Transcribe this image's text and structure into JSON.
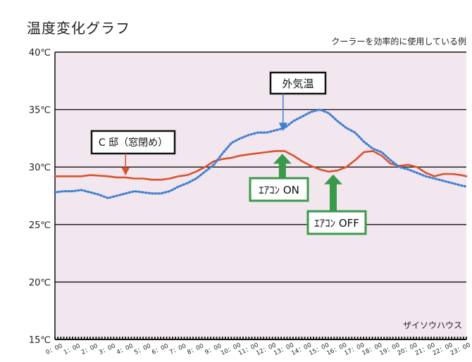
{
  "chart_data": {
    "type": "line",
    "title": "温度変化グラフ",
    "subtitle": "クーラーを効率的に使用している例",
    "watermark": "ザイソウハウス",
    "ylim": [
      15,
      40
    ],
    "y_ticks": [
      15,
      20,
      25,
      30,
      35,
      40
    ],
    "y_unit": "℃",
    "x_ticks": [
      "0：00",
      "1：00",
      "2：00",
      "3：00",
      "4：00",
      "5：00",
      "6：00",
      "7：00",
      "8：00",
      "9：00",
      "10：00",
      "11：00",
      "12：00",
      "13：00",
      "14：00",
      "15：00",
      "16：00",
      "17：00",
      "18：00",
      "19：00",
      "20：00",
      "21：00",
      "22：00",
      "23：00"
    ],
    "xlim": [
      0,
      23.3
    ],
    "grid": true,
    "colors": {
      "background": "#f2e6ef",
      "house_line": "#d9532b",
      "outside_line": "#3f7fd0",
      "gridline": "#111111",
      "arrow": "#3a9a4a"
    },
    "series": [
      {
        "name": "C 邸（窓閉め）",
        "style": "solid",
        "x": [
          0,
          0.5,
          1,
          1.5,
          2,
          2.5,
          3,
          3.5,
          4,
          4.5,
          5,
          5.5,
          6,
          6.5,
          7,
          7.5,
          8,
          8.5,
          9,
          9.5,
          10,
          10.5,
          11,
          11.5,
          12,
          12.5,
          13,
          13.5,
          14,
          14.5,
          15,
          15.5,
          16,
          16.5,
          17,
          17.5,
          18,
          18.5,
          19,
          19.5,
          20,
          20.5,
          21,
          21.5,
          22,
          22.5,
          23,
          23.3
        ],
        "values": [
          29.2,
          29.2,
          29.2,
          29.2,
          29.3,
          29.25,
          29.2,
          29.1,
          29.1,
          29.0,
          29.0,
          28.9,
          28.9,
          29.0,
          29.2,
          29.3,
          29.6,
          30.0,
          30.5,
          30.7,
          30.8,
          31.0,
          31.1,
          31.2,
          31.3,
          31.4,
          31.4,
          31.0,
          30.5,
          30.1,
          29.8,
          29.6,
          29.7,
          30.0,
          30.6,
          31.3,
          31.4,
          31.0,
          30.3,
          30.1,
          30.2,
          30.0,
          29.5,
          29.2,
          29.4,
          29.4,
          29.3,
          29.2
        ]
      },
      {
        "name": "外気温",
        "style": "dotted",
        "x": [
          0,
          0.5,
          1,
          1.5,
          2,
          2.5,
          3,
          3.5,
          4,
          4.5,
          5,
          5.5,
          6,
          6.5,
          7,
          7.5,
          8,
          8.5,
          9,
          9.5,
          10,
          10.5,
          11,
          11.5,
          12,
          12.5,
          13,
          13.5,
          14,
          14.5,
          15,
          15.5,
          16,
          16.5,
          17,
          17.5,
          18,
          18.5,
          19,
          19.5,
          20,
          20.5,
          21,
          21.5,
          22,
          22.5,
          23,
          23.3
        ],
        "values": [
          27.8,
          27.9,
          27.9,
          28.0,
          27.8,
          27.6,
          27.3,
          27.5,
          27.7,
          27.9,
          27.8,
          27.7,
          27.7,
          27.9,
          28.3,
          28.6,
          29.0,
          29.6,
          30.2,
          31.2,
          32.1,
          32.5,
          32.8,
          33.0,
          33.0,
          33.2,
          33.4,
          34.0,
          34.4,
          34.8,
          35.0,
          34.7,
          34.0,
          33.4,
          33.0,
          32.2,
          31.6,
          31.3,
          30.6,
          30.0,
          29.8,
          29.5,
          29.2,
          29.0,
          28.8,
          28.6,
          28.4,
          28.3
        ]
      }
    ],
    "annotations": [
      {
        "name": "house-label",
        "text": "C 邸（窓閉め）",
        "x": 4.0,
        "y": 29.2
      },
      {
        "name": "outside-label",
        "text": "外気温",
        "x": 13.0,
        "y": 33.0
      },
      {
        "name": "aircon-on",
        "text": "ｴｱｺﾝ ON",
        "x": 13.0,
        "y": 31.4
      },
      {
        "name": "aircon-off",
        "text": "ｴｱｺﾝ OFF",
        "x": 15.6,
        "y": 29.6
      }
    ]
  }
}
